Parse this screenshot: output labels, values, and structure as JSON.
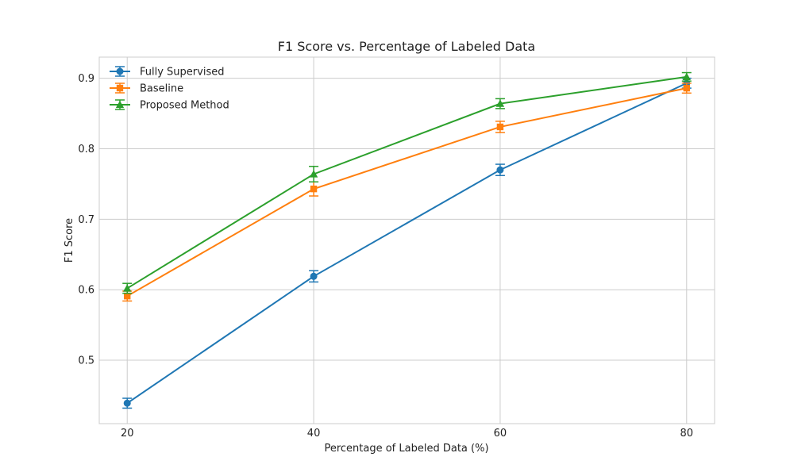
{
  "chart_data": {
    "type": "line",
    "title": "F1 Score vs. Percentage of Labeled Data",
    "xlabel": "Percentage of Labeled Data (%)",
    "ylabel": "F1 Score",
    "x": [
      20,
      40,
      60,
      80
    ],
    "xlim": [
      17,
      83
    ],
    "ylim": [
      0.41,
      0.93
    ],
    "xticks": [
      20,
      40,
      60,
      80
    ],
    "yticks": [
      0.5,
      0.6,
      0.7,
      0.8,
      0.9
    ],
    "grid": true,
    "legend_position": "top-left",
    "series": [
      {
        "name": "Fully Supervised",
        "color": "#1f77b4",
        "marker": "circle",
        "values": [
          0.439,
          0.619,
          0.77,
          0.893
        ],
        "errors": [
          0.007,
          0.008,
          0.008,
          0.007
        ]
      },
      {
        "name": "Baseline",
        "color": "#ff7f0e",
        "marker": "square",
        "values": [
          0.591,
          0.743,
          0.831,
          0.886
        ],
        "errors": [
          0.007,
          0.01,
          0.008,
          0.007
        ]
      },
      {
        "name": "Proposed Method",
        "color": "#2ca02c",
        "marker": "triangle",
        "values": [
          0.602,
          0.764,
          0.864,
          0.902
        ],
        "errors": [
          0.007,
          0.011,
          0.007,
          0.006
        ]
      }
    ]
  }
}
